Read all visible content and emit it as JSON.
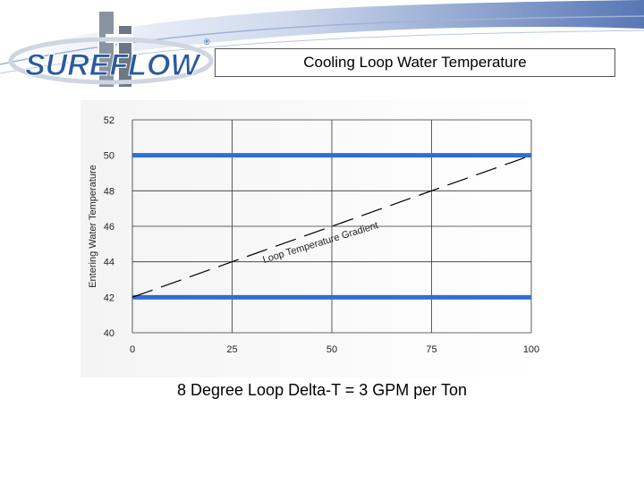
{
  "slide": {
    "title": "Cooling Loop Water Temperature",
    "caption": "8 Degree Loop Delta-T = 3 GPM per Ton"
  },
  "logo": {
    "text": "SUREFLOW",
    "mark": "®"
  },
  "colors": {
    "accent_blue": "#2f6fd1",
    "swoosh": "#3a5fa8",
    "logo_text": "#2a5aa0",
    "logo_emblem": "#8a93a0"
  },
  "chart_data": {
    "type": "line",
    "title": "",
    "xlabel": "",
    "ylabel": "Entering Water Temperature",
    "xlim": [
      0,
      100
    ],
    "ylim": [
      40,
      52
    ],
    "x_ticks": [
      0,
      25,
      50,
      75,
      100
    ],
    "y_ticks": [
      40,
      42,
      44,
      46,
      48,
      50,
      52
    ],
    "grid": true,
    "series": [
      {
        "name": "",
        "style": "solid",
        "color": "#2f6fd1",
        "x": [
          0,
          100
        ],
        "y": [
          50,
          50
        ]
      },
      {
        "name": "",
        "style": "solid",
        "color": "#2f6fd1",
        "x": [
          0,
          100
        ],
        "y": [
          42,
          42
        ]
      },
      {
        "name": "",
        "style": "dashed",
        "color": "#000000",
        "x": [
          0,
          100
        ],
        "y": [
          42,
          50
        ]
      }
    ],
    "annotations": [
      {
        "text": "Loop Temperature Gradient"
      }
    ]
  }
}
